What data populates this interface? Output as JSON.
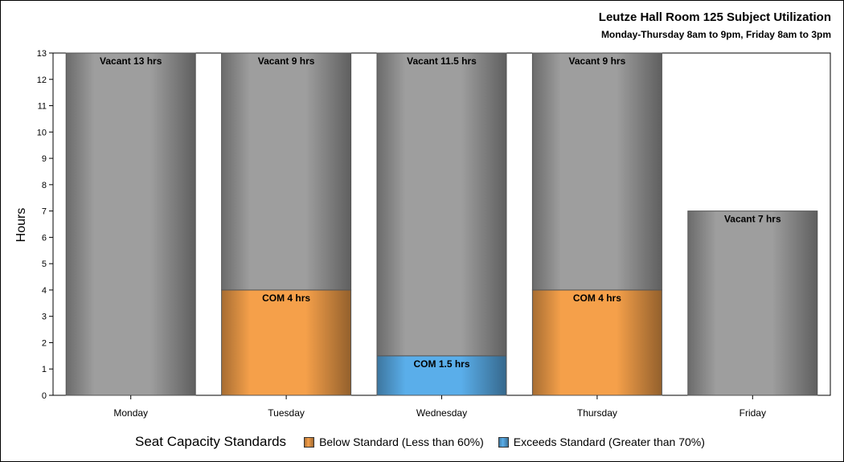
{
  "chart_data": {
    "type": "stacked-bar",
    "title": "Leutze Hall Room 125 Subject Utilization",
    "subtitle": "Monday-Thursday 8am to 9pm, Friday 8am to 3pm",
    "ylabel": "Hours",
    "xlabel": "",
    "ylim": [
      0,
      13
    ],
    "yticks": [
      0,
      1,
      2,
      3,
      4,
      5,
      6,
      7,
      8,
      9,
      10,
      11,
      12,
      13
    ],
    "categories": [
      "Monday",
      "Tuesday",
      "Wednesday",
      "Thursday",
      "Friday"
    ],
    "bars": [
      {
        "category": "Monday",
        "segments": [
          {
            "series": "Vacant",
            "value": 13,
            "label": "Vacant 13 hrs"
          }
        ]
      },
      {
        "category": "Tuesday",
        "segments": [
          {
            "series": "Below Standard",
            "value": 4,
            "label": "COM 4 hrs"
          },
          {
            "series": "Vacant",
            "value": 9,
            "label": "Vacant 9 hrs"
          }
        ]
      },
      {
        "category": "Wednesday",
        "segments": [
          {
            "series": "Exceeds Standard",
            "value": 1.5,
            "label": "COM 1.5 hrs"
          },
          {
            "series": "Vacant",
            "value": 11.5,
            "label": "Vacant 11.5 hrs"
          }
        ]
      },
      {
        "category": "Thursday",
        "segments": [
          {
            "series": "Below Standard",
            "value": 4,
            "label": "COM 4 hrs"
          },
          {
            "series": "Vacant",
            "value": 9,
            "label": "Vacant 9 hrs"
          }
        ]
      },
      {
        "category": "Friday",
        "segments": [
          {
            "series": "Vacant",
            "value": 7,
            "label": "Vacant 7 hrs"
          }
        ]
      }
    ],
    "colors": {
      "Vacant": "#9e9e9e",
      "Below Standard": "#f5a04a",
      "Exceeds Standard": "#5aaeea"
    },
    "legend": {
      "title": "Seat Capacity Standards",
      "position": "bottom",
      "items": [
        {
          "series": "Below Standard",
          "label": "Below Standard (Less than 60%)",
          "color": "#f5a04a"
        },
        {
          "series": "Exceeds Standard",
          "label": "Exceeds Standard (Greater than 70%)",
          "color": "#5aaeea"
        }
      ]
    },
    "grid": false
  }
}
